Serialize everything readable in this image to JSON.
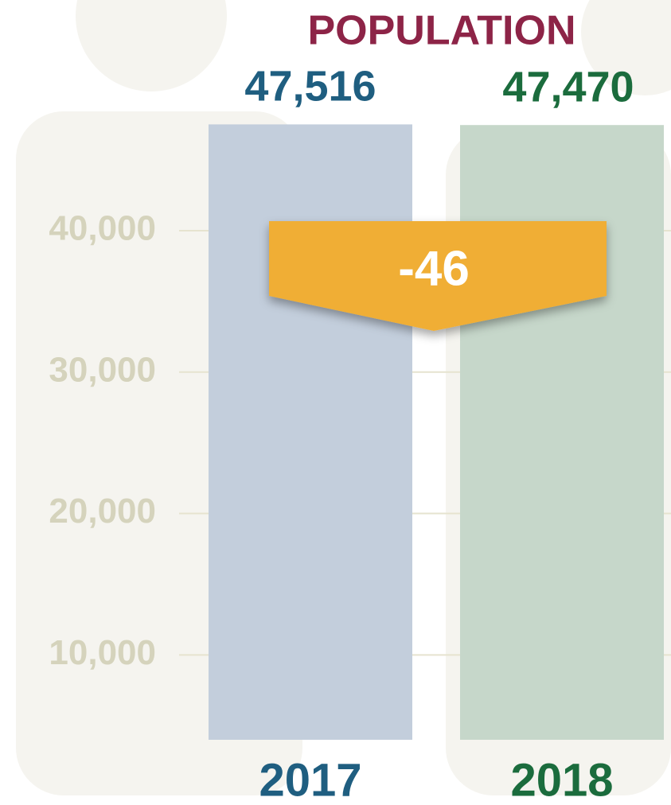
{
  "chart_data": {
    "type": "bar",
    "title": "POPULATION",
    "categories": [
      "2017",
      "2018"
    ],
    "values": [
      47516,
      47470
    ],
    "value_labels": [
      "47,516",
      "47,470"
    ],
    "colors": [
      "#c3cedc",
      "#c6d7ca"
    ],
    "label_colors": [
      "#1f5e80",
      "#1b6c3d"
    ],
    "ylim": [
      4000,
      49000
    ],
    "yticks": [
      {
        "value": 10000,
        "label": "10,000"
      },
      {
        "value": 20000,
        "label": "20,000"
      },
      {
        "value": 30000,
        "label": "30,000"
      },
      {
        "value": 40000,
        "label": "40,000"
      }
    ],
    "grid": true,
    "annotation": "-46",
    "annotation_color": "#f0ae35"
  }
}
